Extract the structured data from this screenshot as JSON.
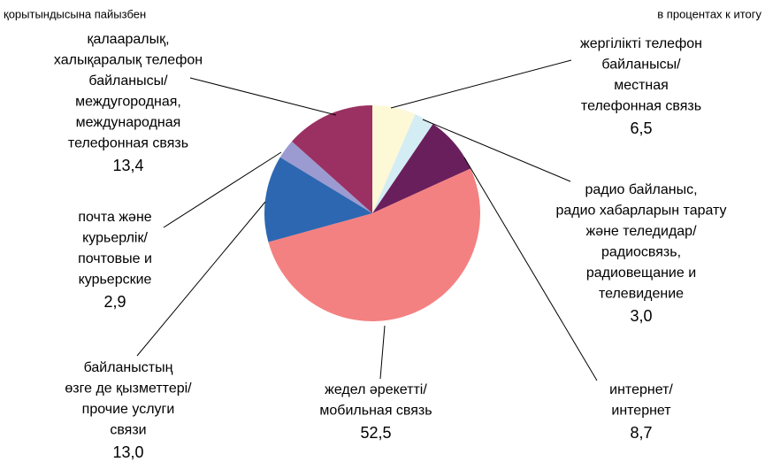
{
  "chart_data": {
    "type": "pie",
    "header_left": "қорытындысына пайызбен",
    "header_right": "в процентах к итогу",
    "categories": [
      [
        "жергілікті телефон",
        "байланысы/",
        "местная",
        "телефонная связь"
      ],
      [
        "радио байланыс,",
        "радио хабарларын тарату",
        "және теледидар/",
        "радиосвязь,",
        "радиовещание и",
        "телевидение"
      ],
      [
        "интернет/",
        "интернет"
      ],
      [
        "жедел әрекетті/",
        "мобильная связь"
      ],
      [
        "байланыстың",
        "өзге де қызметтері/",
        "прочие услуги",
        "связи"
      ],
      [
        "почта және",
        "курьерлік/",
        "почтовые и",
        "курьерские"
      ],
      [
        "қалааралық,",
        "халықаралық телефон",
        "байланысы/",
        "междугородная,",
        "международная",
        "телефонная связь"
      ]
    ],
    "values": [
      6.5,
      3.0,
      8.7,
      52.5,
      13.0,
      2.9,
      13.4
    ],
    "value_labels": [
      "6,5",
      "3,0",
      "8,7",
      "52,5",
      "13,0",
      "2,9",
      "13,4"
    ],
    "colors": [
      "#fdf8d6",
      "#d4edf4",
      "#6a1f5d",
      "#f48181",
      "#2e67b1",
      "#9b9bd1",
      "#9a3162"
    ]
  }
}
